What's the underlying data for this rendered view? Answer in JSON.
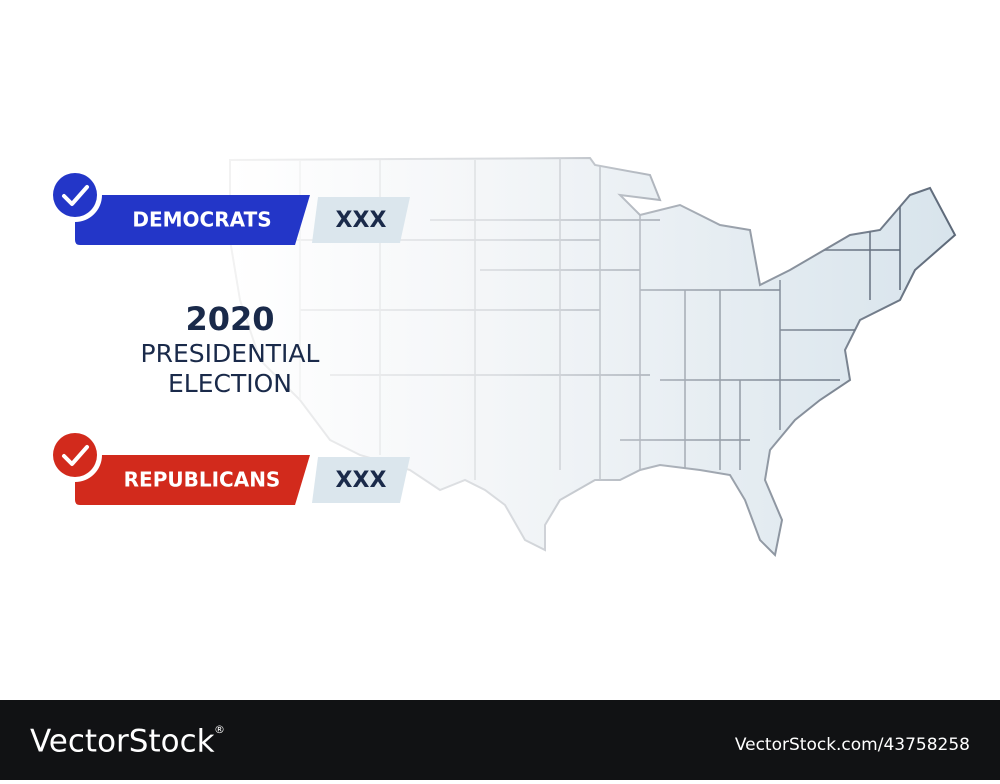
{
  "header": {
    "year": "2020",
    "line1": "PRESIDENTIAL",
    "line2": "ELECTION"
  },
  "parties": [
    {
      "name": "DEMOCRATS",
      "count": "XXX"
    },
    {
      "name": "REPUBLICANS",
      "count": "XXX"
    }
  ],
  "footer": {
    "brand": "VectorStock",
    "mark": "®",
    "id": "VectorStock.com/43758258"
  }
}
